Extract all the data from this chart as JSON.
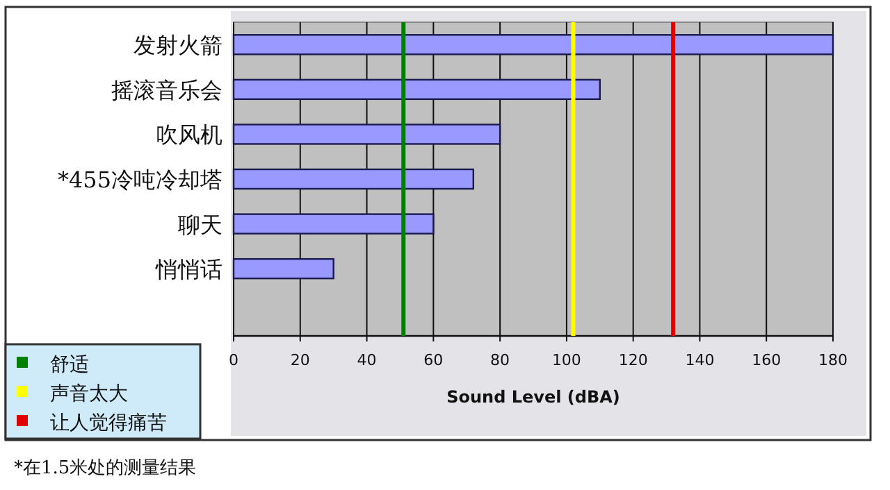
{
  "chart_data": {
    "type": "bar",
    "orientation": "horizontal",
    "categories": [
      "发射火箭",
      "摇滚音乐会",
      "吹风机",
      "*455冷吨冷却塔",
      "聊天",
      "悄悄话"
    ],
    "values": [
      180,
      110,
      80,
      72,
      60,
      30
    ],
    "color": "#9999ff",
    "xlabel": "Sound Level (dBA)",
    "xlim": [
      0,
      180
    ],
    "xticks": [
      0,
      20,
      40,
      60,
      80,
      100,
      120,
      140,
      160,
      180
    ],
    "grid": "x",
    "ref_lines": [
      {
        "axis": "x",
        "value": 51,
        "label": "舒适",
        "color": "#008000"
      },
      {
        "axis": "x",
        "value": 102,
        "label": "声音太大",
        "color": "#ffff00"
      },
      {
        "axis": "x",
        "value": 132,
        "label": "让人觉得痛苦",
        "color": "#e00000"
      }
    ],
    "legend": "bottom left",
    "annotations": [
      "*在1.5米处的测量结果"
    ]
  }
}
